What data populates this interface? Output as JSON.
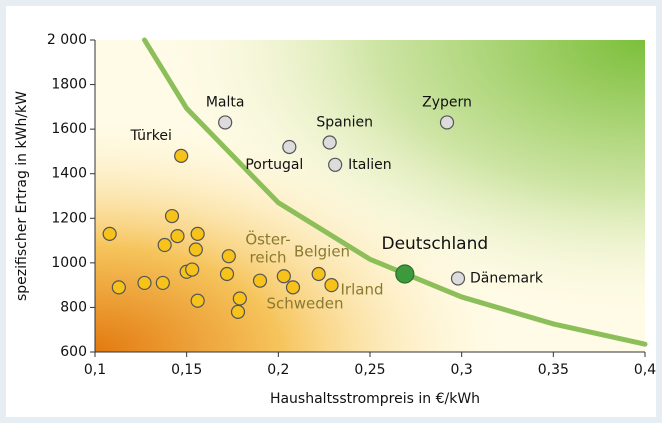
{
  "chart_data": {
    "type": "scatter",
    "xlabel": "Haushaltsstrompreis in €/kWh",
    "ylabel": "spezifischer Ertrag in kWh/kW",
    "x": [
      0.171,
      0.147,
      0.206,
      0.228,
      0.231,
      0.292,
      0.269,
      0.298,
      0.108,
      0.113,
      0.127,
      0.137,
      0.138,
      0.142,
      0.145,
      0.156,
      0.155,
      0.15,
      0.153,
      0.156,
      0.173,
      0.172,
      0.179,
      0.178,
      0.19,
      0.203,
      0.208,
      0.222,
      0.229
    ],
    "values": [
      1630,
      1480,
      1520,
      1540,
      1440,
      1630,
      950,
      930,
      1130,
      890,
      910,
      910,
      1080,
      1210,
      1120,
      1130,
      1060,
      960,
      970,
      830,
      1030,
      950,
      840,
      780,
      920,
      940,
      890,
      950,
      900
    ],
    "labels": [
      "Malta",
      "Türkei",
      "Portugal",
      "Spanien",
      "Italien",
      "Zypern",
      "Deutschland",
      "Dänemark",
      null,
      null,
      null,
      null,
      null,
      null,
      null,
      null,
      null,
      null,
      null,
      null,
      null,
      null,
      null,
      null,
      null,
      null,
      null,
      null,
      null
    ],
    "colors": [
      "#dcdcdc",
      "#f7c21a",
      "#dcdcdc",
      "#dcdcdc",
      "#dcdcdc",
      "#dcdcdc",
      "#3c9a3c",
      "#dcdcdc",
      "#f7c21a",
      "#f7c21a",
      "#f7c21a",
      "#f7c21a",
      "#f7c21a",
      "#f7c21a",
      "#f7c21a",
      "#f7c21a",
      "#f7c21a",
      "#f7c21a",
      "#f7c21a",
      "#f7c21a",
      "#f7c21a",
      "#f7c21a",
      "#f7c21a",
      "#f7c21a",
      "#f7c21a",
      "#f7c21a",
      "#f7c21a",
      "#f7c21a",
      "#f7c21a"
    ],
    "annotations": [
      "Öster-",
      "reich",
      "Belgien",
      "Irland",
      "Schweden"
    ],
    "curve": {
      "color": "#8cbf5a",
      "x": [
        0.127,
        0.15,
        0.2,
        0.25,
        0.3,
        0.35,
        0.4
      ],
      "values": [
        2000,
        1693,
        1270,
        1016,
        847,
        726,
        635
      ]
    },
    "xlim": [
      0.1,
      0.4
    ],
    "xticks": [
      {
        "value": 0.1,
        "label": "0,1"
      },
      {
        "value": 0.15,
        "label": "0,15"
      },
      {
        "value": 0.2,
        "label": "0,2"
      },
      {
        "value": 0.25,
        "label": "0,25"
      },
      {
        "value": 0.3,
        "label": "0,3"
      },
      {
        "value": 0.35,
        "label": "0,35"
      },
      {
        "value": 0.4,
        "label": "0,4"
      }
    ],
    "ylim": [
      600,
      2000
    ],
    "yticks": [
      600,
      800,
      1000,
      1200,
      1400,
      1600,
      1800,
      {
        "value": 2000,
        "label": "2 000"
      }
    ]
  }
}
